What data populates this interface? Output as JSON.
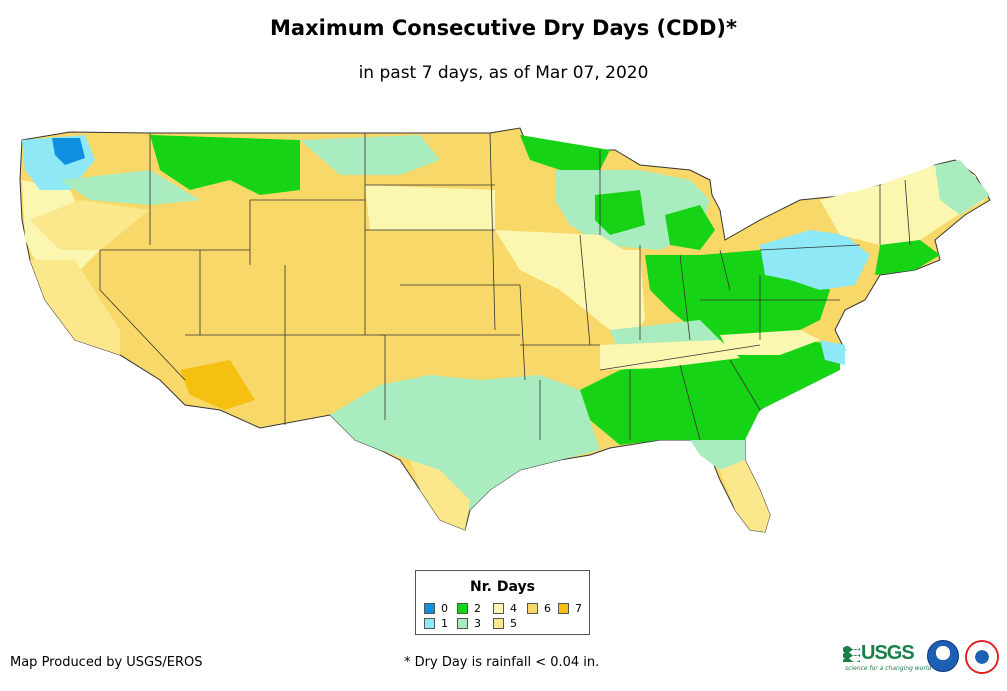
{
  "title": "Maximum Consecutive Dry Days (CDD)*",
  "subtitle": "in past 7 days, as of Mar 07, 2020",
  "legend": {
    "title": "Nr. Days",
    "items": [
      {
        "label": "0",
        "color": "#0e8fe0"
      },
      {
        "label": "1",
        "color": "#8ee8f6"
      },
      {
        "label": "2",
        "color": "#16d316"
      },
      {
        "label": "3",
        "color": "#a8ecc0"
      },
      {
        "label": "4",
        "color": "#fbf6b0"
      },
      {
        "label": "5",
        "color": "#fbe88c"
      },
      {
        "label": "6",
        "color": "#f8d868"
      },
      {
        "label": "7",
        "color": "#f5c010"
      }
    ]
  },
  "footer": {
    "credit": "Map Produced by USGS/EROS",
    "note": "* Dry Day is rainfall < 0.04 in."
  },
  "logos": {
    "usgs": "USGS",
    "usgs_tagline": "science for a changing world",
    "noaa": "noaa-logo",
    "nws": "nws-logo"
  }
}
